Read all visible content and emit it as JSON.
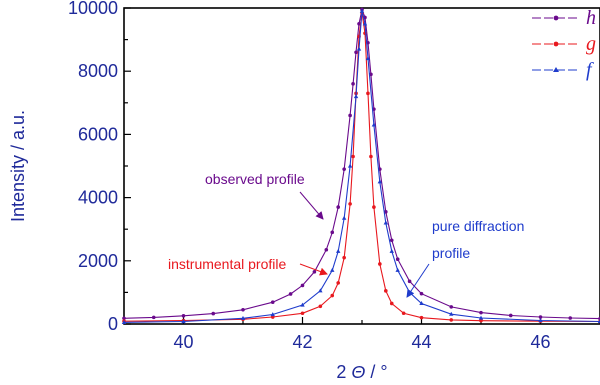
{
  "chart_data": {
    "type": "line",
    "xlabel": "2 Θ / °",
    "ylabel": "Intensity / a.u.",
    "xlim": [
      39,
      47
    ],
    "ylim": [
      0,
      10000
    ],
    "xticks": [
      40,
      42,
      44,
      46
    ],
    "yticks": [
      0,
      2000,
      4000,
      6000,
      8000,
      10000
    ],
    "grid": false,
    "legend_position": "top-right",
    "series": [
      {
        "name": "h",
        "color": "#6a0a8c",
        "marker": "circle",
        "x": [
          39.0,
          39.5,
          40.0,
          40.5,
          41.0,
          41.5,
          41.8,
          42.0,
          42.2,
          42.4,
          42.5,
          42.6,
          42.7,
          42.8,
          42.85,
          42.9,
          42.95,
          43.0,
          43.05,
          43.1,
          43.15,
          43.2,
          43.3,
          43.4,
          43.5,
          43.6,
          43.8,
          44.0,
          44.5,
          45.0,
          45.5,
          46.0,
          46.5,
          47.0
        ],
        "values": [
          180,
          210,
          260,
          330,
          450,
          690,
          950,
          1220,
          1650,
          2350,
          2900,
          3700,
          4900,
          6600,
          7600,
          8600,
          9500,
          9950,
          9700,
          8900,
          7900,
          6800,
          4900,
          3550,
          2650,
          2050,
          1350,
          960,
          540,
          360,
          270,
          220,
          190,
          170
        ]
      },
      {
        "name": "g",
        "color": "#e8181e",
        "marker": "circle",
        "x": [
          39.0,
          40.0,
          41.0,
          41.5,
          42.0,
          42.3,
          42.5,
          42.6,
          42.7,
          42.8,
          42.85,
          42.9,
          42.95,
          43.0,
          43.05,
          43.1,
          43.15,
          43.2,
          43.3,
          43.4,
          43.5,
          43.7,
          44.0,
          44.5,
          45.0,
          46.0,
          47.0
        ],
        "values": [
          90,
          110,
          150,
          220,
          340,
          560,
          900,
          1300,
          2100,
          3800,
          5300,
          7300,
          9100,
          9850,
          9200,
          7300,
          5300,
          3700,
          1900,
          1050,
          650,
          340,
          200,
          130,
          105,
          90,
          80
        ]
      },
      {
        "name": "f",
        "color": "#1f3ccc",
        "marker": "triangle",
        "x": [
          39.0,
          40.0,
          41.0,
          41.5,
          42.0,
          42.3,
          42.5,
          42.6,
          42.7,
          42.8,
          42.9,
          42.95,
          43.0,
          43.05,
          43.1,
          43.2,
          43.3,
          43.4,
          43.5,
          43.6,
          43.8,
          44.0,
          44.5,
          45.0,
          46.0,
          47.0
        ],
        "values": [
          50,
          80,
          180,
          300,
          600,
          1050,
          1700,
          2300,
          3350,
          5000,
          7200,
          8700,
          9900,
          9500,
          8400,
          6300,
          4500,
          3200,
          2300,
          1700,
          1000,
          650,
          310,
          190,
          110,
          80
        ]
      }
    ],
    "annotations": [
      {
        "text": "observed profile",
        "color": "#6a0a8c"
      },
      {
        "text": "instrumental profile",
        "color": "#e8181e"
      },
      {
        "text": "pure diffraction",
        "color": "#1f3ccc"
      },
      {
        "text": "profile",
        "color": "#1f3ccc"
      }
    ]
  }
}
